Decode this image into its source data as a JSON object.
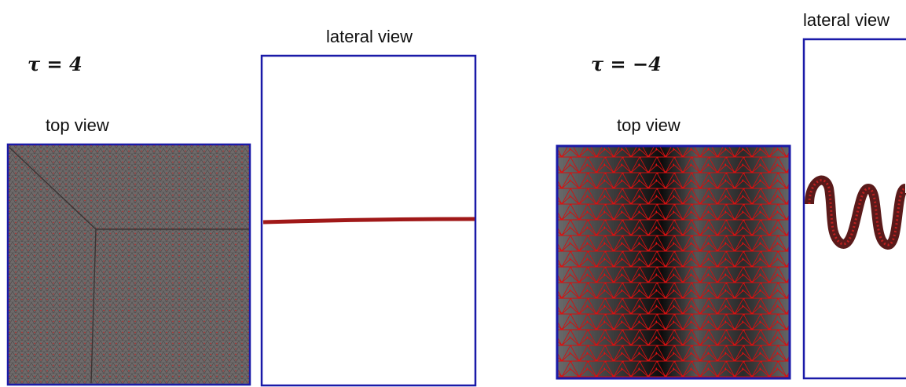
{
  "panels": [
    {
      "label": "τ = 4",
      "top_view": "top view",
      "lateral_view": "lateral view"
    },
    {
      "label": "τ = −4",
      "top_view": "top view",
      "lateral_view": "lateral view"
    }
  ]
}
